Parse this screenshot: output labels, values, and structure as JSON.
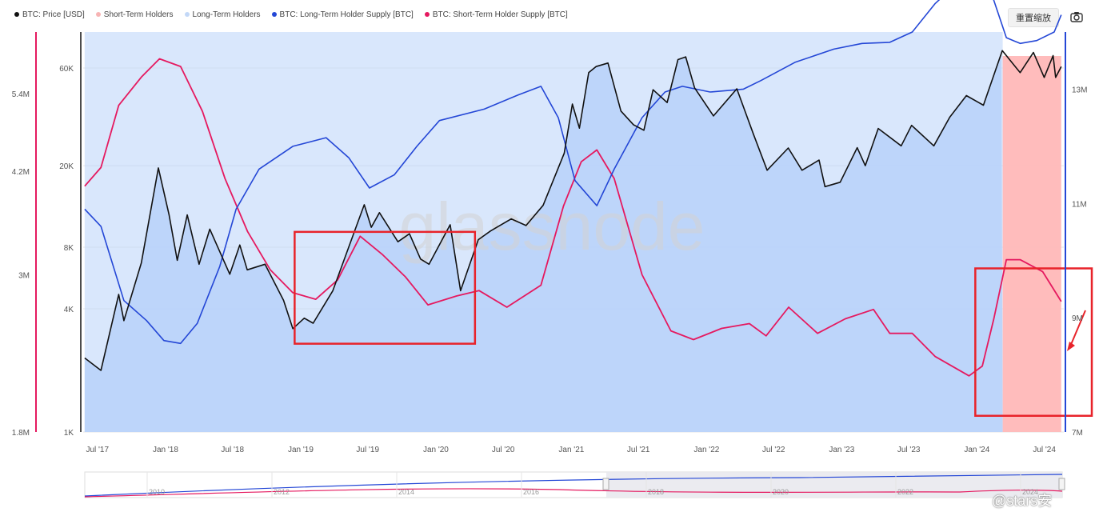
{
  "legend": [
    {
      "label": "BTC: Price [USD]",
      "color": "#111111"
    },
    {
      "label": "Short-Term Holders",
      "color": "#f7b4b4"
    },
    {
      "label": "Long-Term Holders",
      "color": "#c3d8f7"
    },
    {
      "label": "BTC: Long-Term Holder Supply [BTC]",
      "color": "#2447d6"
    },
    {
      "label": "BTC: Short-Term Holder Supply [BTC]",
      "color": "#e5195f"
    }
  ],
  "toolbar": {
    "reset_zoom_label": "重置缩放",
    "camera_icon": "camera-icon"
  },
  "watermark": {
    "text": "glassnode"
  },
  "author_watermark": {
    "text": "@stars安"
  },
  "colors": {
    "price": "#111111",
    "lth_area": "#b9d3f9",
    "sth_area": "#ffb8b8",
    "lth_supply": "#2447d6",
    "sth_supply": "#e5195f",
    "highlight_box": "#e8232a"
  },
  "chart_data": {
    "type": "line",
    "x_type": "date",
    "x_ticks": [
      "Jul '17",
      "Jan '18",
      "Jul '18",
      "Jan '19",
      "Jul '19",
      "Jan '20",
      "Jul '20",
      "Jan '21",
      "Jul '21",
      "Jan '22",
      "Jul '22",
      "Jan '23",
      "Jul '23",
      "Jan '24",
      "Jul '24"
    ],
    "price_axis": {
      "scale": "log",
      "ticks": [
        "1K",
        "4K",
        "8K",
        "20K",
        "60K"
      ],
      "tick_values": [
        1000,
        4000,
        8000,
        20000,
        60000
      ],
      "range": [
        1000,
        90000
      ]
    },
    "sth_axis": {
      "scale": "log",
      "ticks": [
        "1.8M",
        "3M",
        "4.2M",
        "5.4M"
      ],
      "tick_values": [
        1800000,
        3000000,
        4200000,
        5400000
      ],
      "range": [
        1800000,
        6600000
      ]
    },
    "lth_axis": {
      "scale": "linear",
      "ticks": [
        "7M",
        "9M",
        "11M",
        "13M"
      ],
      "tick_values": [
        7000000,
        9000000,
        11000000,
        13000000
      ],
      "range": [
        7000000,
        14000000
      ]
    },
    "series": [
      {
        "name": "BTC: Price [USD]",
        "axis": "price",
        "points": [
          [
            "2017-06-01",
            2300
          ],
          [
            "2017-07-15",
            2000
          ],
          [
            "2017-09-01",
            4700
          ],
          [
            "2017-09-15",
            3500
          ],
          [
            "2017-11-01",
            6700
          ],
          [
            "2017-12-17",
            19500
          ],
          [
            "2018-01-15",
            11500
          ],
          [
            "2018-02-06",
            6900
          ],
          [
            "2018-03-05",
            11500
          ],
          [
            "2018-04-06",
            6600
          ],
          [
            "2018-05-05",
            9800
          ],
          [
            "2018-06-28",
            5900
          ],
          [
            "2018-07-25",
            8200
          ],
          [
            "2018-08-14",
            6200
          ],
          [
            "2018-10-01",
            6600
          ],
          [
            "2018-11-20",
            4400
          ],
          [
            "2018-12-15",
            3200
          ],
          [
            "2019-01-15",
            3600
          ],
          [
            "2019-02-08",
            3400
          ],
          [
            "2019-04-02",
            4900
          ],
          [
            "2019-05-15",
            8000
          ],
          [
            "2019-06-26",
            12900
          ],
          [
            "2019-07-15",
            10000
          ],
          [
            "2019-08-06",
            11800
          ],
          [
            "2019-09-25",
            8500
          ],
          [
            "2019-10-26",
            9300
          ],
          [
            "2019-11-25",
            7000
          ],
          [
            "2019-12-18",
            6600
          ],
          [
            "2020-02-13",
            10300
          ],
          [
            "2020-03-12",
            4900
          ],
          [
            "2020-04-29",
            8700
          ],
          [
            "2020-06-01",
            9600
          ],
          [
            "2020-07-27",
            11000
          ],
          [
            "2020-09-05",
            10200
          ],
          [
            "2020-10-21",
            12800
          ],
          [
            "2020-12-17",
            23000
          ],
          [
            "2021-01-08",
            40000
          ],
          [
            "2021-01-27",
            30500
          ],
          [
            "2021-02-21",
            57000
          ],
          [
            "2021-03-13",
            61000
          ],
          [
            "2021-04-14",
            63500
          ],
          [
            "2021-05-19",
            37000
          ],
          [
            "2021-06-22",
            31700
          ],
          [
            "2021-07-20",
            29800
          ],
          [
            "2021-08-14",
            47000
          ],
          [
            "2021-09-21",
            40700
          ],
          [
            "2021-10-20",
            66000
          ],
          [
            "2021-11-10",
            68000
          ],
          [
            "2021-12-04",
            48000
          ],
          [
            "2022-01-24",
            35000
          ],
          [
            "2022-03-28",
            47500
          ],
          [
            "2022-05-12",
            28500
          ],
          [
            "2022-06-18",
            19000
          ],
          [
            "2022-08-14",
            24400
          ],
          [
            "2022-09-20",
            19000
          ],
          [
            "2022-11-05",
            21300
          ],
          [
            "2022-11-21",
            15800
          ],
          [
            "2023-01-01",
            16600
          ],
          [
            "2023-02-16",
            24500
          ],
          [
            "2023-03-10",
            20000
          ],
          [
            "2023-04-14",
            30400
          ],
          [
            "2023-06-15",
            25000
          ],
          [
            "2023-07-13",
            31500
          ],
          [
            "2023-09-11",
            25000
          ],
          [
            "2023-10-24",
            34500
          ],
          [
            "2023-12-08",
            44000
          ],
          [
            "2024-01-23",
            39500
          ],
          [
            "2024-03-14",
            73000
          ],
          [
            "2024-05-01",
            57000
          ],
          [
            "2024-06-06",
            71500
          ],
          [
            "2024-07-05",
            54000
          ],
          [
            "2024-07-29",
            69000
          ],
          [
            "2024-08-05",
            54000
          ],
          [
            "2024-08-20",
            61000
          ]
        ]
      },
      {
        "name": "BTC: Long-Term Holder Supply [BTC]",
        "axis": "lth",
        "points": [
          [
            "2017-06-01",
            10900000
          ],
          [
            "2017-07-15",
            10600000
          ],
          [
            "2017-09-15",
            9300000
          ],
          [
            "2017-11-15",
            8950000
          ],
          [
            "2018-01-01",
            8600000
          ],
          [
            "2018-02-15",
            8550000
          ],
          [
            "2018-04-01",
            8900000
          ],
          [
            "2018-06-01",
            9900000
          ],
          [
            "2018-07-15",
            10900000
          ],
          [
            "2018-09-15",
            11600000
          ],
          [
            "2018-12-15",
            12000000
          ],
          [
            "2019-03-15",
            12150000
          ],
          [
            "2019-05-15",
            11800000
          ],
          [
            "2019-07-10",
            11270000
          ],
          [
            "2019-09-15",
            11500000
          ],
          [
            "2019-11-15",
            12000000
          ],
          [
            "2020-01-15",
            12450000
          ],
          [
            "2020-05-15",
            12650000
          ],
          [
            "2020-08-15",
            12900000
          ],
          [
            "2020-10-15",
            13050000
          ],
          [
            "2020-12-01",
            12500000
          ],
          [
            "2021-01-15",
            11400000
          ],
          [
            "2021-03-15",
            10960000
          ],
          [
            "2021-05-01",
            11600000
          ],
          [
            "2021-07-15",
            12500000
          ],
          [
            "2021-09-15",
            12950000
          ],
          [
            "2021-11-01",
            13050000
          ],
          [
            "2022-01-15",
            12950000
          ],
          [
            "2022-04-15",
            13000000
          ],
          [
            "2022-06-01",
            13150000
          ],
          [
            "2022-09-01",
            13470000
          ],
          [
            "2022-12-15",
            13700000
          ],
          [
            "2023-03-01",
            13800000
          ],
          [
            "2023-05-15",
            13820000
          ],
          [
            "2023-07-15",
            14000000
          ],
          [
            "2023-09-15",
            14500000
          ],
          [
            "2023-11-01",
            14780000
          ],
          [
            "2023-12-20",
            14800000
          ],
          [
            "2024-02-15",
            14650000
          ],
          [
            "2024-03-25",
            13900000
          ],
          [
            "2024-05-01",
            13800000
          ],
          [
            "2024-06-15",
            13850000
          ],
          [
            "2024-08-01",
            14000000
          ],
          [
            "2024-08-20",
            14300000
          ]
        ]
      },
      {
        "name": "BTC: Short-Term Holder Supply [BTC]",
        "axis": "sth",
        "points": [
          [
            "2017-06-01",
            4000000
          ],
          [
            "2017-07-15",
            4250000
          ],
          [
            "2017-09-01",
            5200000
          ],
          [
            "2017-11-01",
            5700000
          ],
          [
            "2017-12-20",
            6050000
          ],
          [
            "2018-02-15",
            5900000
          ],
          [
            "2018-04-15",
            5100000
          ],
          [
            "2018-06-15",
            4100000
          ],
          [
            "2018-08-15",
            3450000
          ],
          [
            "2018-10-15",
            3050000
          ],
          [
            "2018-12-15",
            2830000
          ],
          [
            "2019-02-15",
            2770000
          ],
          [
            "2019-04-15",
            2950000
          ],
          [
            "2019-06-15",
            3400000
          ],
          [
            "2019-08-15",
            3200000
          ],
          [
            "2019-10-15",
            2980000
          ],
          [
            "2019-12-15",
            2720000
          ],
          [
            "2020-03-01",
            2800000
          ],
          [
            "2020-05-01",
            2850000
          ],
          [
            "2020-07-15",
            2700000
          ],
          [
            "2020-10-15",
            2900000
          ],
          [
            "2020-12-15",
            3750000
          ],
          [
            "2021-02-01",
            4330000
          ],
          [
            "2021-03-15",
            4500000
          ],
          [
            "2021-05-01",
            4100000
          ],
          [
            "2021-07-15",
            3000000
          ],
          [
            "2021-10-01",
            2500000
          ],
          [
            "2021-12-01",
            2430000
          ],
          [
            "2022-02-15",
            2520000
          ],
          [
            "2022-05-01",
            2560000
          ],
          [
            "2022-06-15",
            2460000
          ],
          [
            "2022-08-15",
            2700000
          ],
          [
            "2022-11-01",
            2480000
          ],
          [
            "2023-01-15",
            2600000
          ],
          [
            "2023-04-01",
            2680000
          ],
          [
            "2023-05-15",
            2480000
          ],
          [
            "2023-07-15",
            2480000
          ],
          [
            "2023-09-15",
            2300000
          ],
          [
            "2023-12-15",
            2160000
          ],
          [
            "2024-01-20",
            2230000
          ],
          [
            "2024-02-20",
            2600000
          ],
          [
            "2024-03-25",
            3150000
          ],
          [
            "2024-05-01",
            3150000
          ],
          [
            "2024-07-01",
            3030000
          ],
          [
            "2024-08-20",
            2750000
          ]
        ]
      },
      {
        "name": "Long-Term Holders",
        "type": "area",
        "from": "2017-06-01",
        "to": "2024-03-15"
      },
      {
        "name": "Short-Term Holders",
        "type": "area",
        "from": "2024-03-15",
        "to": "2024-08-20"
      }
    ],
    "highlight_boxes": [
      {
        "from": "2018-12-20",
        "to": "2020-04-20",
        "axis": "price",
        "top": 9500,
        "bottom": 2700
      },
      {
        "from": "2024-01-01",
        "to": "2024-12-15",
        "axis": "price",
        "top": 6300,
        "bottom": 1200
      }
    ],
    "navigator": {
      "ticks": [
        "2010",
        "2012",
        "2014",
        "2016",
        "2018",
        "2020",
        "2022",
        "2024"
      ]
    }
  }
}
